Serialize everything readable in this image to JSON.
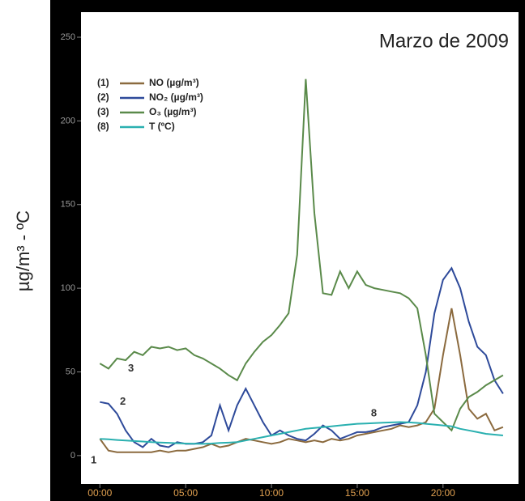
{
  "chart_data": {
    "type": "line",
    "title": "Marzo de 2009",
    "y_label": "µg/m³ - ºC",
    "x": [
      0,
      0.5,
      1,
      1.5,
      2,
      2.5,
      3,
      3.5,
      4,
      4.5,
      5,
      5.5,
      6,
      6.5,
      7,
      7.5,
      8,
      8.5,
      9,
      9.5,
      10,
      10.5,
      11,
      11.5,
      12,
      12.5,
      13,
      13.5,
      14,
      14.5,
      15,
      15.5,
      16,
      16.5,
      17,
      17.5,
      18,
      18.5,
      19,
      19.5,
      20,
      20.5,
      21,
      21.5,
      22,
      22.5,
      23,
      23.5
    ],
    "xlim": [
      -1.1,
      24.4
    ],
    "xticks": [
      {
        "value": 0,
        "label": "00:00"
      },
      {
        "value": 5,
        "label": "05:00"
      },
      {
        "value": 10,
        "label": "10:00"
      },
      {
        "value": 15,
        "label": "15:00"
      },
      {
        "value": 20,
        "label": "20:00"
      }
    ],
    "ylim": [
      -17,
      265
    ],
    "yticks": [
      0,
      50,
      100,
      150,
      200,
      250
    ],
    "series": [
      {
        "label": "(1)",
        "name": "NO (µg/m³)",
        "tag": "1",
        "color": "#8b6a3e",
        "values": [
          10,
          3,
          2,
          2,
          2,
          2,
          2,
          3,
          2,
          3,
          3,
          4,
          5,
          7,
          5,
          6,
          8,
          10,
          9,
          8,
          7,
          8,
          10,
          9,
          8,
          9,
          8,
          10,
          9,
          10,
          12,
          13,
          14,
          15,
          16,
          18,
          17,
          18,
          20,
          28,
          60,
          88,
          60,
          28,
          22,
          25,
          15,
          17
        ]
      },
      {
        "label": "(2)",
        "name": "NO₂ (µg/m³)",
        "tag": "2",
        "color": "#2e4a9a",
        "values": [
          32,
          31,
          25,
          15,
          8,
          5,
          10,
          6,
          5,
          8,
          7,
          7,
          8,
          12,
          30,
          15,
          30,
          40,
          30,
          20,
          12,
          15,
          12,
          10,
          9,
          13,
          18,
          15,
          10,
          12,
          14,
          14,
          15,
          17,
          18,
          19,
          20,
          30,
          50,
          85,
          105,
          112,
          100,
          80,
          65,
          60,
          45,
          37
        ]
      },
      {
        "label": "(3)",
        "name": "O₃ (µg/m³)",
        "tag": "3",
        "color": "#5a8a4a",
        "values": [
          55,
          52,
          58,
          57,
          62,
          60,
          65,
          64,
          65,
          63,
          64,
          60,
          58,
          55,
          52,
          48,
          45,
          55,
          62,
          68,
          72,
          78,
          85,
          120,
          225,
          145,
          97,
          96,
          110,
          100,
          110,
          102,
          100,
          99,
          98,
          97,
          94,
          88,
          60,
          25,
          20,
          15,
          28,
          35,
          38,
          42,
          45,
          48
        ]
      },
      {
        "label": "(8)",
        "name": "T (ºC)",
        "tag": "8",
        "color": "#2ab0b0",
        "values": [
          10,
          9.7,
          9.3,
          9,
          8.7,
          8.4,
          8,
          7.8,
          7.6,
          7.4,
          7.2,
          7.1,
          7,
          7.2,
          7.5,
          7.7,
          8,
          9,
          10,
          11,
          12,
          13,
          14,
          15,
          16,
          16.5,
          17,
          17.5,
          18,
          18.5,
          19,
          19.2,
          19.4,
          19.6,
          19.8,
          20,
          19.8,
          19.5,
          19,
          18.5,
          18,
          17.5,
          16,
          15,
          14,
          13,
          12.5,
          12
        ]
      }
    ]
  }
}
